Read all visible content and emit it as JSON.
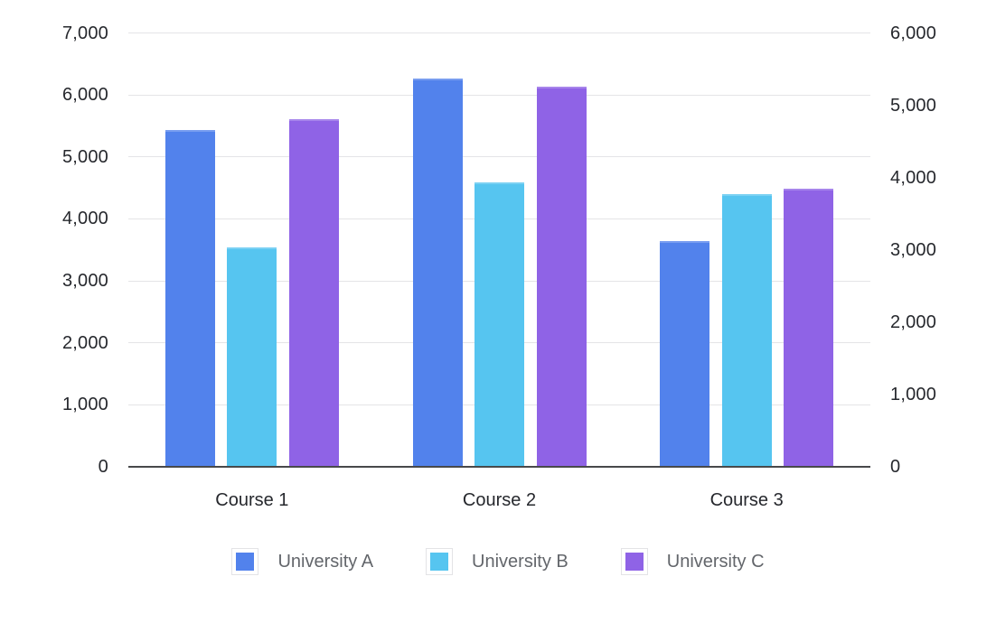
{
  "chart_data": {
    "type": "bar",
    "title": "",
    "categories": [
      "Course 1",
      "Course 2",
      "Course 3"
    ],
    "series": [
      {
        "name": "University A",
        "color": "#5282EC",
        "values": [
          5430,
          6260,
          3640
        ]
      },
      {
        "name": "University B",
        "color": "#56C5F0",
        "values": [
          3540,
          4590,
          4400
        ]
      },
      {
        "name": "University C",
        "color": "#8F63E6",
        "values": [
          5610,
          6130,
          4490
        ]
      }
    ],
    "axis_left": {
      "min": 0,
      "max": 7000,
      "step": 1000,
      "tick_labels": [
        "0",
        "1,000",
        "2,000",
        "3,000",
        "4,000",
        "5,000",
        "6,000",
        "7,000"
      ]
    },
    "axis_right": {
      "min": 0,
      "max": 6000,
      "step": 1000,
      "tick_labels": [
        "0",
        "1,000",
        "2,000",
        "3,000",
        "4,000",
        "5,000",
        "6,000"
      ]
    },
    "grid": "horizontal gridlines aligned to left axis ticks",
    "legend_position": "bottom",
    "colors": {
      "background": "#ffffff",
      "gridline": "#e4e4e7",
      "axis_line": "#48494b",
      "tick_text": "#26282d",
      "category_text": "#26282d",
      "legend_text": "#63666b",
      "legend_swatch_border": "#e3e3e6"
    }
  }
}
